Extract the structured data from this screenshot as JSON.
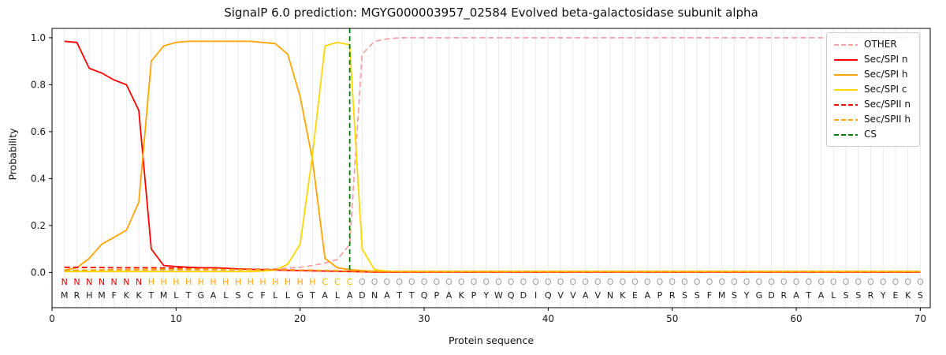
{
  "page": {
    "title": "SignalP 6.0 prediction: MGYG000003957_02584 Evolved beta-galactosidase subunit alpha"
  },
  "chart_data": {
    "type": "line",
    "title": "SignalP 6.0 prediction: MGYG000003957_02584 Evolved beta-galactosidase subunit alpha",
    "xlabel": "Protein sequence",
    "ylabel": "Probability",
    "xlim": [
      0,
      70.8
    ],
    "ylim": [
      -0.15,
      1.04
    ],
    "xticks": [
      0,
      10,
      20,
      30,
      40,
      50,
      60,
      70
    ],
    "yticks": [
      "0.0",
      "0.2",
      "0.4",
      "0.6",
      "0.8",
      "1.0"
    ],
    "grid": {
      "vertical_per_residue": true,
      "color": "#eaeaea"
    },
    "legend_position": "upper right",
    "sequence": "MRHMFKKTMLTGALSCFLLGTALADNATTQPAKPYWQDIQVVAVNKEAPRSSFMSYGDRATALSSRYEKS",
    "sequence_color": "#1a1a1a",
    "regions": [
      {
        "letter": "N",
        "from": 1,
        "to": 7,
        "color": "#e60000"
      },
      {
        "letter": "H",
        "from": 8,
        "to": 21,
        "color": "#ffa500"
      },
      {
        "letter": "C",
        "from": 22,
        "to": 24,
        "color": "#eec200"
      },
      {
        "letter": "O",
        "from": 25,
        "to": 70,
        "color": "#a0a0a0"
      }
    ],
    "cleavage_site": {
      "label": "CS",
      "position": 24,
      "color": "#008000",
      "dash": true
    },
    "series": [
      {
        "name": "OTHER",
        "color": "#f5a2a8",
        "dash": true,
        "values": [
          0.01,
          0.01,
          0.01,
          0.01,
          0.01,
          0.01,
          0.01,
          0.01,
          0.01,
          0.01,
          0.01,
          0.01,
          0.01,
          0.01,
          0.01,
          0.012,
          0.013,
          0.015,
          0.018,
          0.022,
          0.03,
          0.04,
          0.055,
          0.12,
          0.93,
          0.985,
          0.995,
          1,
          1,
          1,
          1,
          1,
          1,
          1,
          1,
          1,
          1,
          1,
          1,
          1,
          1,
          1,
          1,
          1,
          1,
          1,
          1,
          1,
          1,
          1,
          1,
          1,
          1,
          1,
          1,
          1,
          1,
          1,
          1,
          1,
          1,
          1,
          1,
          1,
          1,
          1,
          1,
          1,
          1,
          1
        ]
      },
      {
        "name": "Sec/SPI n",
        "color": "#ff0000",
        "dash": false,
        "values": [
          0.985,
          0.98,
          0.87,
          0.85,
          0.82,
          0.8,
          0.69,
          0.1,
          0.03,
          0.025,
          0.022,
          0.02,
          0.02,
          0.018,
          0.015,
          0.013,
          0.012,
          0.01,
          0.009,
          0.008,
          0.007,
          0.006,
          0.005,
          0.004,
          0.003,
          0.002,
          0.002,
          0.002,
          0.002,
          0.002,
          0.002,
          0.002,
          0.002,
          0.002,
          0.002,
          0.002,
          0.002,
          0.002,
          0.002,
          0.002,
          0.002,
          0.002,
          0.002,
          0.002,
          0.002,
          0.002,
          0.002,
          0.002,
          0.002,
          0.002,
          0.002,
          0.002,
          0.002,
          0.002,
          0.002,
          0.002,
          0.002,
          0.002,
          0.002,
          0.002,
          0.002,
          0.002,
          0.002,
          0.002,
          0.002,
          0.002,
          0.002,
          0.002,
          0.002,
          0.002
        ]
      },
      {
        "name": "Sec/SPI h",
        "color": "#ffa500",
        "dash": false,
        "values": [
          0.01,
          0.02,
          0.06,
          0.12,
          0.15,
          0.18,
          0.3,
          0.9,
          0.965,
          0.98,
          0.985,
          0.985,
          0.985,
          0.985,
          0.985,
          0.985,
          0.98,
          0.975,
          0.93,
          0.75,
          0.48,
          0.06,
          0.02,
          0.012,
          0.008,
          0.005,
          0.005,
          0.005,
          0.005,
          0.005,
          0.005,
          0.005,
          0.005,
          0.005,
          0.005,
          0.005,
          0.005,
          0.005,
          0.005,
          0.005,
          0.005,
          0.005,
          0.005,
          0.005,
          0.005,
          0.005,
          0.005,
          0.005,
          0.005,
          0.005,
          0.005,
          0.005,
          0.005,
          0.005,
          0.005,
          0.005,
          0.005,
          0.005,
          0.005,
          0.005,
          0.005,
          0.005,
          0.005,
          0.005,
          0.005,
          0.005,
          0.005,
          0.005,
          0.005,
          0.005
        ]
      },
      {
        "name": "Sec/SPI c",
        "color": "#ffd700",
        "dash": false,
        "values": [
          0.004,
          0.004,
          0.004,
          0.004,
          0.004,
          0.004,
          0.004,
          0.004,
          0.004,
          0.004,
          0.004,
          0.004,
          0.004,
          0.004,
          0.004,
          0.004,
          0.006,
          0.01,
          0.035,
          0.12,
          0.5,
          0.965,
          0.98,
          0.97,
          0.1,
          0.012,
          0.006,
          0.004,
          0.004,
          0.004,
          0.004,
          0.004,
          0.004,
          0.004,
          0.004,
          0.004,
          0.004,
          0.004,
          0.004,
          0.004,
          0.004,
          0.004,
          0.004,
          0.004,
          0.004,
          0.004,
          0.004,
          0.004,
          0.004,
          0.004,
          0.004,
          0.004,
          0.004,
          0.004,
          0.004,
          0.004,
          0.004,
          0.004,
          0.004,
          0.004,
          0.004,
          0.004,
          0.004,
          0.004,
          0.004,
          0.004,
          0.004,
          0.004,
          0.004,
          0.004
        ]
      },
      {
        "name": "Sec/SPII n",
        "color": "#ff0000",
        "dash": true,
        "values": [
          0.022,
          0.022,
          0.021,
          0.021,
          0.02,
          0.02,
          0.02,
          0.02,
          0.019,
          0.019,
          0.018,
          0.018,
          0.017,
          0.016,
          0.015,
          0.014,
          0.013,
          0.012,
          0.011,
          0.01,
          0.009,
          0.008,
          0.007,
          0.006,
          0.004,
          0.003,
          0.003,
          0.003,
          0.003,
          0.003,
          0.003,
          0.003,
          0.003,
          0.003,
          0.003,
          0.003,
          0.003,
          0.003,
          0.003,
          0.003,
          0.003,
          0.003,
          0.003,
          0.003,
          0.003,
          0.003,
          0.003,
          0.003,
          0.003,
          0.003,
          0.003,
          0.003,
          0.003,
          0.003,
          0.003,
          0.003,
          0.003,
          0.003,
          0.003,
          0.003,
          0.003,
          0.003,
          0.003,
          0.003,
          0.003,
          0.003,
          0.003,
          0.003,
          0.003,
          0.003
        ]
      },
      {
        "name": "Sec/SPII h",
        "color": "#ffa500",
        "dash": true,
        "values": [
          0.008,
          0.009,
          0.01,
          0.011,
          0.012,
          0.012,
          0.013,
          0.013,
          0.014,
          0.014,
          0.014,
          0.014,
          0.014,
          0.013,
          0.013,
          0.012,
          0.012,
          0.011,
          0.011,
          0.01,
          0.009,
          0.008,
          0.007,
          0.006,
          0.005,
          0.004,
          0.004,
          0.004,
          0.004,
          0.004,
          0.004,
          0.004,
          0.004,
          0.004,
          0.004,
          0.004,
          0.004,
          0.004,
          0.004,
          0.004,
          0.004,
          0.004,
          0.004,
          0.004,
          0.004,
          0.004,
          0.004,
          0.004,
          0.004,
          0.004,
          0.004,
          0.004,
          0.004,
          0.004,
          0.004,
          0.004,
          0.004,
          0.004,
          0.004,
          0.004,
          0.004,
          0.004,
          0.004,
          0.004,
          0.004,
          0.004,
          0.004,
          0.004,
          0.004,
          0.004
        ]
      }
    ]
  }
}
